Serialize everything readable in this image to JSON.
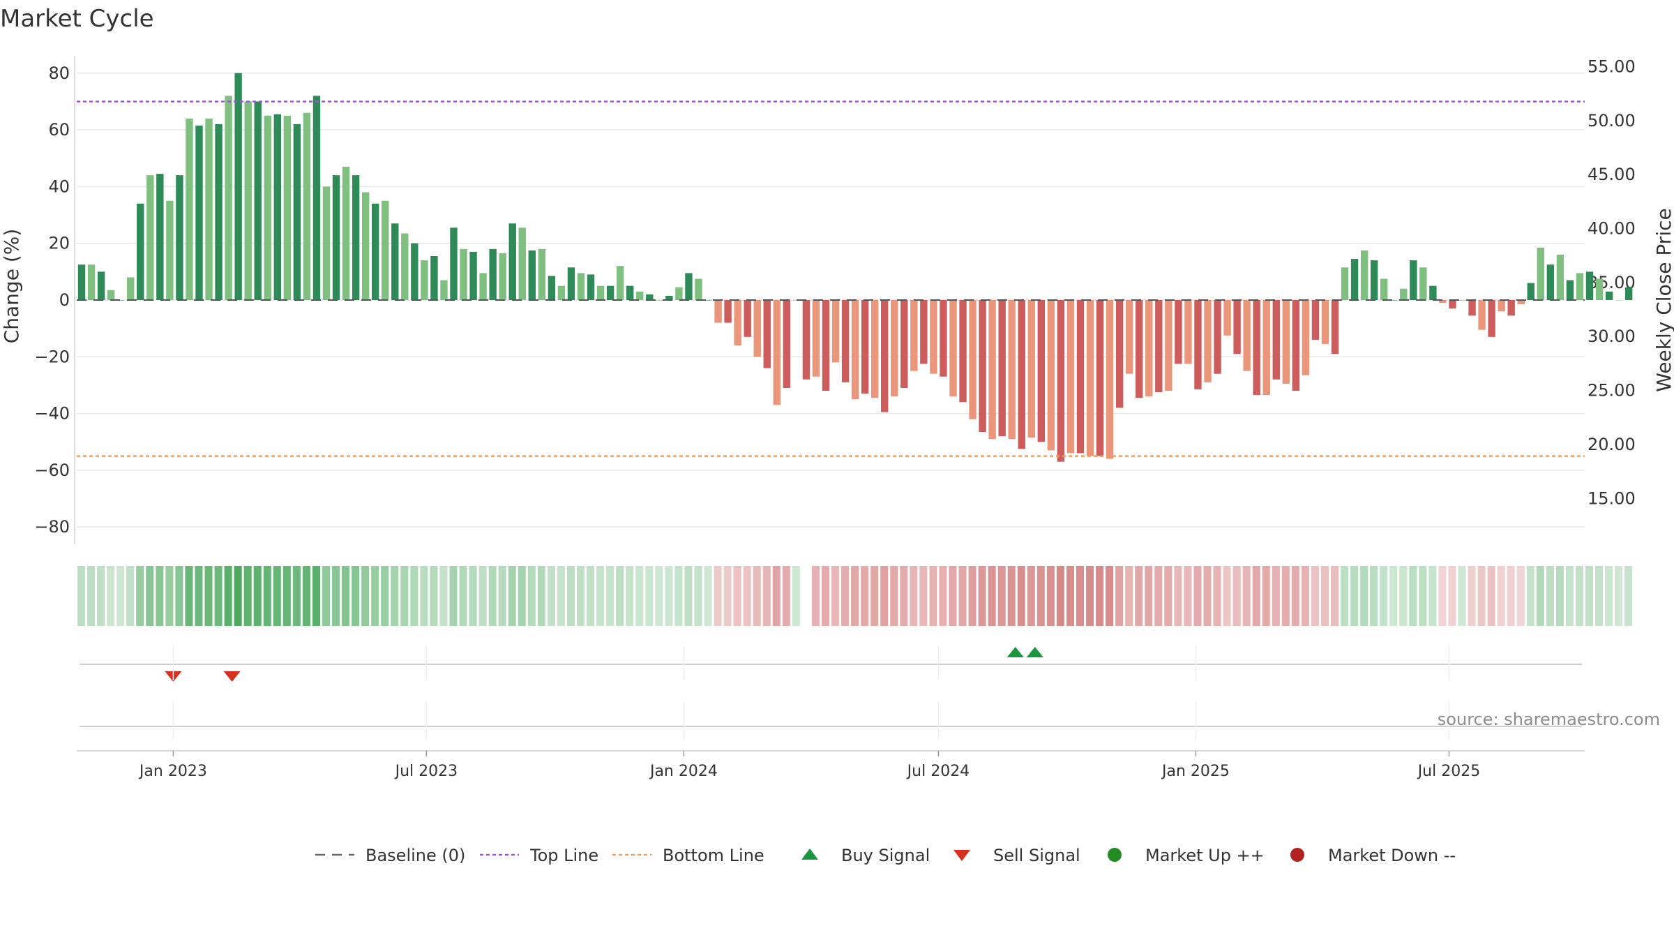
{
  "chart_data": {
    "type": "bar",
    "title": "Market Cycle",
    "ylabel": "Change (%)",
    "y2label": "Weekly Close Price",
    "ylim": [
      -85,
      85
    ],
    "y2lim": [
      10.75,
      56.0
    ],
    "yticks": [
      80,
      60,
      40,
      20,
      0,
      -20,
      -40,
      -60,
      -80
    ],
    "yticks_labels": [
      "80",
      "60",
      "40",
      "20",
      "0",
      "−20",
      "−40",
      "−60",
      "−80"
    ],
    "y2ticks": [
      "55.00",
      "50.00",
      "45.00",
      "40.00",
      "35.00",
      "30.00",
      "25.00",
      "20.00",
      "15.00"
    ],
    "xlim": [
      "2022-10-24",
      "2025-10-06"
    ],
    "xticks": [
      {
        "date": "2023-01-01",
        "label": "Jan 2023"
      },
      {
        "date": "2023-07-01",
        "label": "Jul 2023"
      },
      {
        "date": "2024-01-01",
        "label": "Jan 2024"
      },
      {
        "date": "2024-07-01",
        "label": "Jul 2024"
      },
      {
        "date": "2025-01-01",
        "label": "Jan 2025"
      },
      {
        "date": "2025-07-01",
        "label": "Jul 2025"
      }
    ],
    "grid": true,
    "start_week": "2022-10-24",
    "bar_values": [
      12.5,
      12.5,
      10,
      3.5,
      0,
      8,
      34,
      44,
      44.5,
      35,
      44,
      64,
      61.5,
      64,
      62,
      72,
      80,
      70,
      70,
      65,
      65.5,
      65,
      62,
      66,
      72,
      40,
      44,
      47,
      44,
      38,
      34,
      35,
      27,
      23.5,
      20,
      14,
      15.5,
      7,
      25.5,
      18,
      17,
      9.5,
      18,
      16.5,
      27,
      25.5,
      17.5,
      18,
      8.5,
      5,
      11.5,
      9.5,
      9,
      5,
      5,
      12,
      5,
      3,
      2,
      0,
      1.5,
      4.5,
      9.5,
      7.5,
      0,
      -8,
      -8,
      -16,
      -13,
      -20,
      -24,
      -37,
      -31,
      0,
      -28,
      -27,
      -32,
      -22,
      -29,
      -35,
      -33,
      -34.5,
      -39.5,
      -34,
      -31,
      -25,
      -22.5,
      -26,
      -27,
      -34,
      -36,
      -42,
      -46.5,
      -49,
      -48,
      -49,
      -52.5,
      -48.5,
      -50,
      -53,
      -57,
      -54,
      -54,
      -55,
      -55,
      -56,
      -38,
      -26,
      -34.5,
      -34,
      -32.5,
      -32,
      -22.5,
      -22.5,
      -31.5,
      -29,
      -26,
      -12.5,
      -19,
      -25,
      -33.5,
      -33.5,
      -28,
      -29.5,
      -32,
      -26.5,
      -14,
      -15.5,
      -19,
      11.5,
      14.5,
      17.5,
      14,
      7.5,
      0,
      4,
      14,
      11.5,
      5,
      -1,
      -3,
      0,
      -5.5,
      -10.5,
      -13,
      -4,
      -5.5,
      -1.5,
      6,
      18.5,
      12.5,
      16,
      7,
      9.5,
      10,
      7.5,
      3,
      0,
      4.5
    ],
    "price_series": [],
    "top_line": 70,
    "bottom_line": -55,
    "buy_signals": [
      "2024-08-25",
      "2024-09-08"
    ],
    "sell_signals": [
      "2023-01-01",
      "2023-02-12"
    ],
    "market_up_markers": [],
    "market_down_markers": [],
    "heat_strip_gap_week": 74,
    "legend_position": "bottom-center",
    "legend": [
      {
        "label": "Baseline (0)",
        "kind": "dash-line",
        "color": "#666666"
      },
      {
        "label": "Top Line",
        "kind": "dotted-line",
        "color": "#9b59d0"
      },
      {
        "label": "Bottom Line",
        "kind": "dotted-line",
        "color": "#e8a060"
      },
      {
        "label": "Buy Signal",
        "kind": "triangle-up",
        "color": "#1a9641"
      },
      {
        "label": "Sell Signal",
        "kind": "triangle-down",
        "color": "#d7301f"
      },
      {
        "label": "Market Up ++",
        "kind": "circle",
        "color": "#228b22"
      },
      {
        "label": "Market Down --",
        "kind": "circle",
        "color": "#b22222"
      }
    ],
    "source": "source: sharemaestro.com"
  },
  "colors": {
    "up_strong": "#2e8b57",
    "up_light": "#7fbf7f",
    "down_strong": "#cd5c5c",
    "down_light": "#e9967a",
    "top_line": "#9b59d0",
    "bottom_line": "#e8a060",
    "buy": "#1a9641",
    "sell": "#d7301f"
  }
}
